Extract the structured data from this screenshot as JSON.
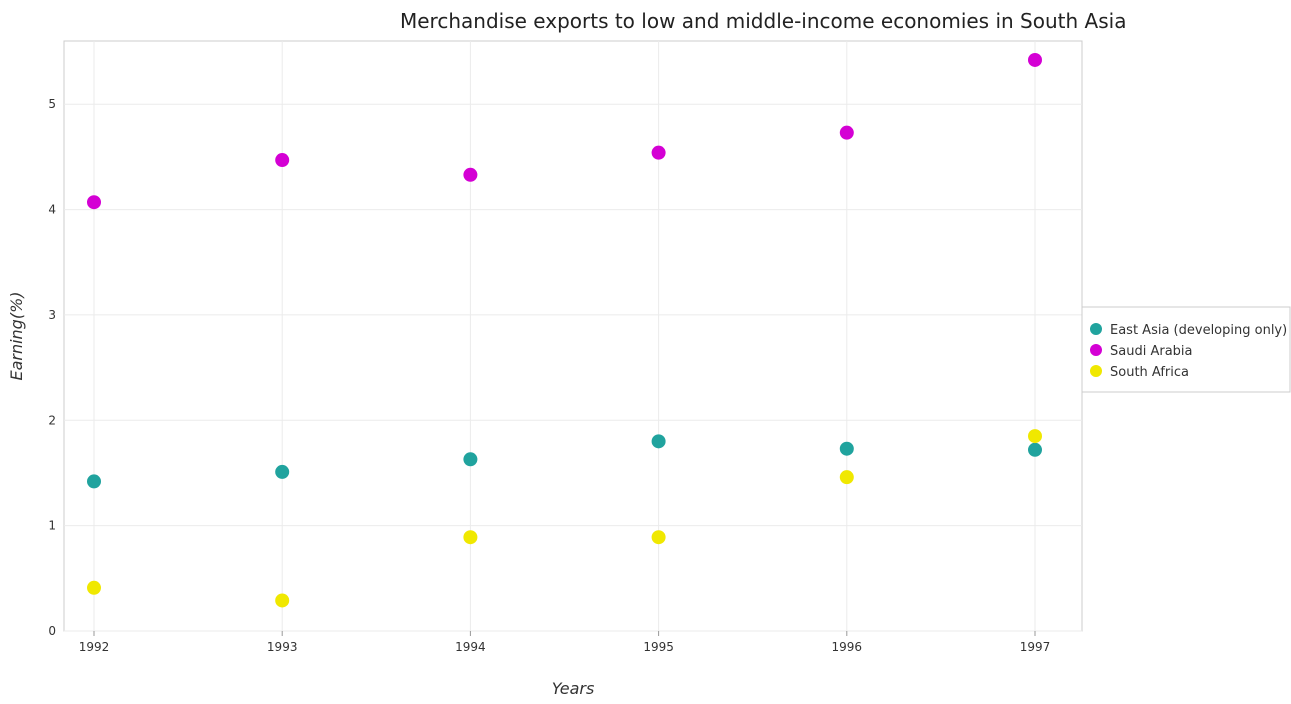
{
  "chart_data": {
    "type": "scatter",
    "title": "Merchandise exports to low and middle-income economies in South Asia",
    "xlabel": "Years",
    "ylabel": "Earning(%)",
    "categories": [
      "1992",
      "1993",
      "1994",
      "1995",
      "1996",
      "1997"
    ],
    "ylim": [
      0,
      5.6
    ],
    "yticks": [
      "0",
      "1",
      "2",
      "3",
      "4",
      "5"
    ],
    "grid": true,
    "legend_position": "right",
    "series": [
      {
        "name": "East Asia (developing only)",
        "color": "#20a39e",
        "values": [
          1.42,
          1.51,
          1.63,
          1.8,
          1.73,
          1.72
        ]
      },
      {
        "name": "Saudi Arabia",
        "color": "#d400d4",
        "values": [
          4.07,
          4.47,
          4.33,
          4.54,
          4.73,
          5.42
        ]
      },
      {
        "name": "South Africa",
        "color": "#f0e800",
        "values": [
          0.41,
          0.29,
          0.89,
          0.89,
          1.46,
          1.85
        ]
      }
    ]
  }
}
